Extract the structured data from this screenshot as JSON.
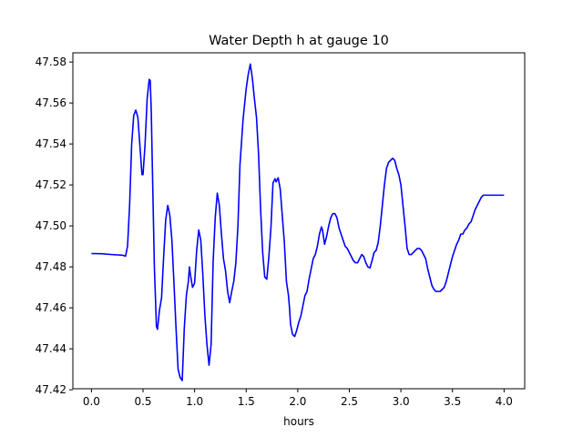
{
  "chart_data": {
    "type": "line",
    "title": "Water Depth h at gauge 10",
    "xlabel": "hours",
    "ylabel": "",
    "xlim": [
      -0.18,
      4.2
    ],
    "ylim": [
      47.4205,
      47.5845
    ],
    "xticks": [
      0.0,
      0.5,
      1.0,
      1.5,
      2.0,
      2.5,
      3.0,
      3.5,
      4.0
    ],
    "xtick_labels": [
      "0.0",
      "0.5",
      "1.0",
      "1.5",
      "2.0",
      "2.5",
      "3.0",
      "3.5",
      "4.0"
    ],
    "yticks": [
      47.42,
      47.44,
      47.46,
      47.48,
      47.5,
      47.52,
      47.54,
      47.56,
      47.58
    ],
    "ytick_labels": [
      "47.42",
      "47.44",
      "47.46",
      "47.48",
      "47.50",
      "47.52",
      "47.54",
      "47.56",
      "47.58"
    ],
    "grid": false,
    "series": [
      {
        "color": "#0000ff",
        "points": [
          [
            0.0,
            47.4865
          ],
          [
            0.1,
            47.4864
          ],
          [
            0.2,
            47.486
          ],
          [
            0.3,
            47.4857
          ],
          [
            0.33,
            47.4852
          ],
          [
            0.35,
            47.49
          ],
          [
            0.37,
            47.51
          ],
          [
            0.39,
            47.54
          ],
          [
            0.41,
            47.554
          ],
          [
            0.43,
            47.5565
          ],
          [
            0.45,
            47.553
          ],
          [
            0.47,
            47.539
          ],
          [
            0.49,
            47.525
          ],
          [
            0.5,
            47.525
          ],
          [
            0.52,
            47.54
          ],
          [
            0.54,
            47.562
          ],
          [
            0.56,
            47.5715
          ],
          [
            0.57,
            47.571
          ],
          [
            0.58,
            47.556
          ],
          [
            0.59,
            47.53
          ],
          [
            0.61,
            47.48
          ],
          [
            0.63,
            47.451
          ],
          [
            0.64,
            47.4495
          ],
          [
            0.66,
            47.459
          ],
          [
            0.68,
            47.465
          ],
          [
            0.7,
            47.485
          ],
          [
            0.72,
            47.503
          ],
          [
            0.74,
            47.51
          ],
          [
            0.76,
            47.505
          ],
          [
            0.78,
            47.493
          ],
          [
            0.8,
            47.472
          ],
          [
            0.82,
            47.45
          ],
          [
            0.84,
            47.43
          ],
          [
            0.86,
            47.426
          ],
          [
            0.88,
            47.4245
          ],
          [
            0.9,
            47.45
          ],
          [
            0.92,
            47.466
          ],
          [
            0.94,
            47.473
          ],
          [
            0.95,
            47.48
          ],
          [
            0.96,
            47.476
          ],
          [
            0.98,
            47.47
          ],
          [
            1.0,
            47.472
          ],
          [
            1.02,
            47.488
          ],
          [
            1.04,
            47.498
          ],
          [
            1.06,
            47.493
          ],
          [
            1.08,
            47.476
          ],
          [
            1.1,
            47.456
          ],
          [
            1.12,
            47.442
          ],
          [
            1.14,
            47.432
          ],
          [
            1.16,
            47.442
          ],
          [
            1.18,
            47.483
          ],
          [
            1.2,
            47.504
          ],
          [
            1.22,
            47.516
          ],
          [
            1.24,
            47.51
          ],
          [
            1.26,
            47.496
          ],
          [
            1.28,
            47.484
          ],
          [
            1.3,
            47.478
          ],
          [
            1.32,
            47.468
          ],
          [
            1.34,
            47.4625
          ],
          [
            1.36,
            47.468
          ],
          [
            1.38,
            47.473
          ],
          [
            1.4,
            47.482
          ],
          [
            1.42,
            47.5
          ],
          [
            1.44,
            47.53
          ],
          [
            1.47,
            47.552
          ],
          [
            1.5,
            47.567
          ],
          [
            1.52,
            47.574
          ],
          [
            1.54,
            47.579
          ],
          [
            1.56,
            47.572
          ],
          [
            1.58,
            47.562
          ],
          [
            1.6,
            47.553
          ],
          [
            1.62,
            47.535
          ],
          [
            1.64,
            47.508
          ],
          [
            1.66,
            47.487
          ],
          [
            1.68,
            47.475
          ],
          [
            1.7,
            47.474
          ],
          [
            1.72,
            47.485
          ],
          [
            1.74,
            47.499
          ],
          [
            1.76,
            47.521
          ],
          [
            1.78,
            47.523
          ],
          [
            1.79,
            47.5215
          ],
          [
            1.81,
            47.5235
          ],
          [
            1.83,
            47.518
          ],
          [
            1.85,
            47.505
          ],
          [
            1.87,
            47.492
          ],
          [
            1.89,
            47.473
          ],
          [
            1.91,
            47.466
          ],
          [
            1.92,
            47.46
          ],
          [
            1.93,
            47.452
          ],
          [
            1.95,
            47.447
          ],
          [
            1.97,
            47.446
          ],
          [
            1.99,
            47.449
          ],
          [
            2.01,
            47.453
          ],
          [
            2.03,
            47.456
          ],
          [
            2.05,
            47.461
          ],
          [
            2.07,
            47.466
          ],
          [
            2.09,
            47.468
          ],
          [
            2.11,
            47.474
          ],
          [
            2.13,
            47.479
          ],
          [
            2.15,
            47.484
          ],
          [
            2.17,
            47.486
          ],
          [
            2.19,
            47.49
          ],
          [
            2.21,
            47.496
          ],
          [
            2.23,
            47.4995
          ],
          [
            2.24,
            47.498
          ],
          [
            2.26,
            47.491
          ],
          [
            2.28,
            47.495
          ],
          [
            2.3,
            47.5
          ],
          [
            2.32,
            47.504
          ],
          [
            2.34,
            47.506
          ],
          [
            2.36,
            47.506
          ],
          [
            2.38,
            47.504
          ],
          [
            2.4,
            47.499
          ],
          [
            2.42,
            47.496
          ],
          [
            2.44,
            47.493
          ],
          [
            2.46,
            47.49
          ],
          [
            2.48,
            47.489
          ],
          [
            2.5,
            47.487
          ],
          [
            2.52,
            47.485
          ],
          [
            2.54,
            47.483
          ],
          [
            2.56,
            47.482
          ],
          [
            2.58,
            47.482
          ],
          [
            2.6,
            47.484
          ],
          [
            2.62,
            47.486
          ],
          [
            2.64,
            47.485
          ],
          [
            2.66,
            47.482
          ],
          [
            2.68,
            47.48
          ],
          [
            2.7,
            47.4795
          ],
          [
            2.72,
            47.483
          ],
          [
            2.74,
            47.487
          ],
          [
            2.76,
            47.488
          ],
          [
            2.78,
            47.492
          ],
          [
            2.8,
            47.5
          ],
          [
            2.82,
            47.51
          ],
          [
            2.84,
            47.52
          ],
          [
            2.86,
            47.528
          ],
          [
            2.88,
            47.531
          ],
          [
            2.9,
            47.532
          ],
          [
            2.92,
            47.533
          ],
          [
            2.94,
            47.532
          ],
          [
            2.96,
            47.528
          ],
          [
            2.98,
            47.525
          ],
          [
            3.0,
            47.52
          ],
          [
            3.02,
            47.51
          ],
          [
            3.04,
            47.5
          ],
          [
            3.06,
            47.489
          ],
          [
            3.08,
            47.486
          ],
          [
            3.1,
            47.486
          ],
          [
            3.12,
            47.487
          ],
          [
            3.14,
            47.488
          ],
          [
            3.16,
            47.489
          ],
          [
            3.18,
            47.489
          ],
          [
            3.2,
            47.488
          ],
          [
            3.22,
            47.486
          ],
          [
            3.24,
            47.484
          ],
          [
            3.26,
            47.479
          ],
          [
            3.28,
            47.475
          ],
          [
            3.3,
            47.471
          ],
          [
            3.32,
            47.469
          ],
          [
            3.34,
            47.468
          ],
          [
            3.36,
            47.468
          ],
          [
            3.38,
            47.468
          ],
          [
            3.4,
            47.469
          ],
          [
            3.42,
            47.47
          ],
          [
            3.44,
            47.473
          ],
          [
            3.46,
            47.477
          ],
          [
            3.48,
            47.481
          ],
          [
            3.5,
            47.485
          ],
          [
            3.52,
            47.488
          ],
          [
            3.54,
            47.491
          ],
          [
            3.56,
            47.493
          ],
          [
            3.58,
            47.496
          ],
          [
            3.6,
            47.496
          ],
          [
            3.62,
            47.498
          ],
          [
            3.64,
            47.499
          ],
          [
            3.66,
            47.501
          ],
          [
            3.68,
            47.502
          ],
          [
            3.7,
            47.505
          ],
          [
            3.72,
            47.508
          ],
          [
            3.74,
            47.51
          ],
          [
            3.76,
            47.512
          ],
          [
            3.78,
            47.514
          ],
          [
            3.8,
            47.515
          ],
          [
            3.82,
            47.515
          ],
          [
            3.84,
            47.515
          ],
          [
            3.86,
            47.515
          ],
          [
            3.88,
            47.515
          ],
          [
            3.9,
            47.515
          ],
          [
            3.92,
            47.515
          ],
          [
            3.94,
            47.515
          ],
          [
            3.96,
            47.515
          ],
          [
            3.98,
            47.515
          ],
          [
            4.0,
            47.515
          ]
        ]
      }
    ]
  }
}
